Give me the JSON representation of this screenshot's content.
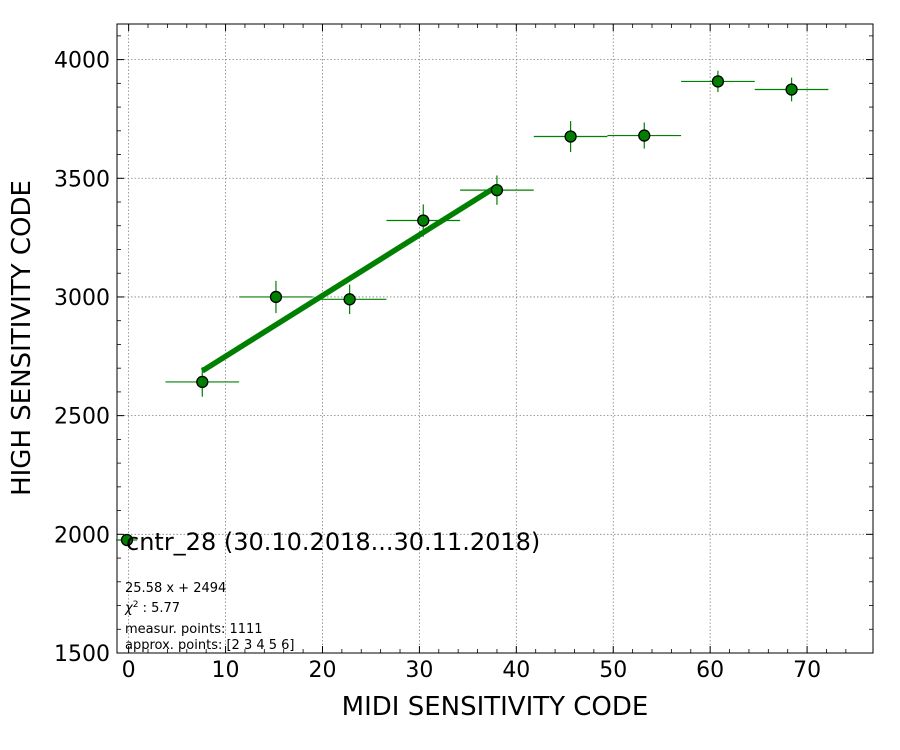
{
  "chart_data": {
    "type": "scatter",
    "xlabel": "MIDI SENSITIVITY CODE",
    "ylabel": "HIGH SENSITIVITY CODE",
    "xlim": [
      -1.2,
      76.8
    ],
    "ylim": [
      1500,
      4150
    ],
    "xticks": [
      0,
      10,
      20,
      30,
      40,
      50,
      60,
      70
    ],
    "yticks": [
      1500,
      2000,
      2500,
      3000,
      3500,
      4000
    ],
    "xtick_labels": [
      "0",
      "10",
      "20",
      "30",
      "40",
      "50",
      "60",
      "70"
    ],
    "ytick_labels": [
      "1500",
      "2000",
      "2500",
      "3000",
      "3500",
      "4000"
    ],
    "grid": true,
    "legend_position": "lower-left",
    "colors": {
      "points": "#008000",
      "edge": "#000000",
      "fit": "#008000",
      "grid": "#808080"
    },
    "series": [
      {
        "name": "cntr_28 (30.10.2018...30.11.2018)",
        "points": [
          {
            "x": 7.6,
            "y": 2642,
            "xerr": 3.8,
            "yerr": 62
          },
          {
            "x": 15.2,
            "y": 3000,
            "xerr": 3.8,
            "yerr": 68
          },
          {
            "x": 22.8,
            "y": 2990,
            "xerr": 3.8,
            "yerr": 62
          },
          {
            "x": 30.4,
            "y": 3322,
            "xerr": 3.8,
            "yerr": 68
          },
          {
            "x": 38.0,
            "y": 3450,
            "xerr": 3.8,
            "yerr": 62
          },
          {
            "x": 45.6,
            "y": 3676,
            "xerr": 3.8,
            "yerr": 65
          },
          {
            "x": 53.2,
            "y": 3680,
            "xerr": 3.8,
            "yerr": 55
          },
          {
            "x": 60.8,
            "y": 3908,
            "xerr": 3.8,
            "yerr": 45
          },
          {
            "x": 68.4,
            "y": 3874,
            "xerr": 3.8,
            "yerr": 50
          }
        ]
      }
    ],
    "fit_line": {
      "slope": 25.58,
      "intercept": 2494,
      "x_range": [
        7.6,
        38.0
      ]
    },
    "annotations": [
      "25.58 x + 2494",
      "χ2 : 5.77",
      "measur. points: 1111",
      "approx. points: [2 3 4 5 6]"
    ]
  }
}
